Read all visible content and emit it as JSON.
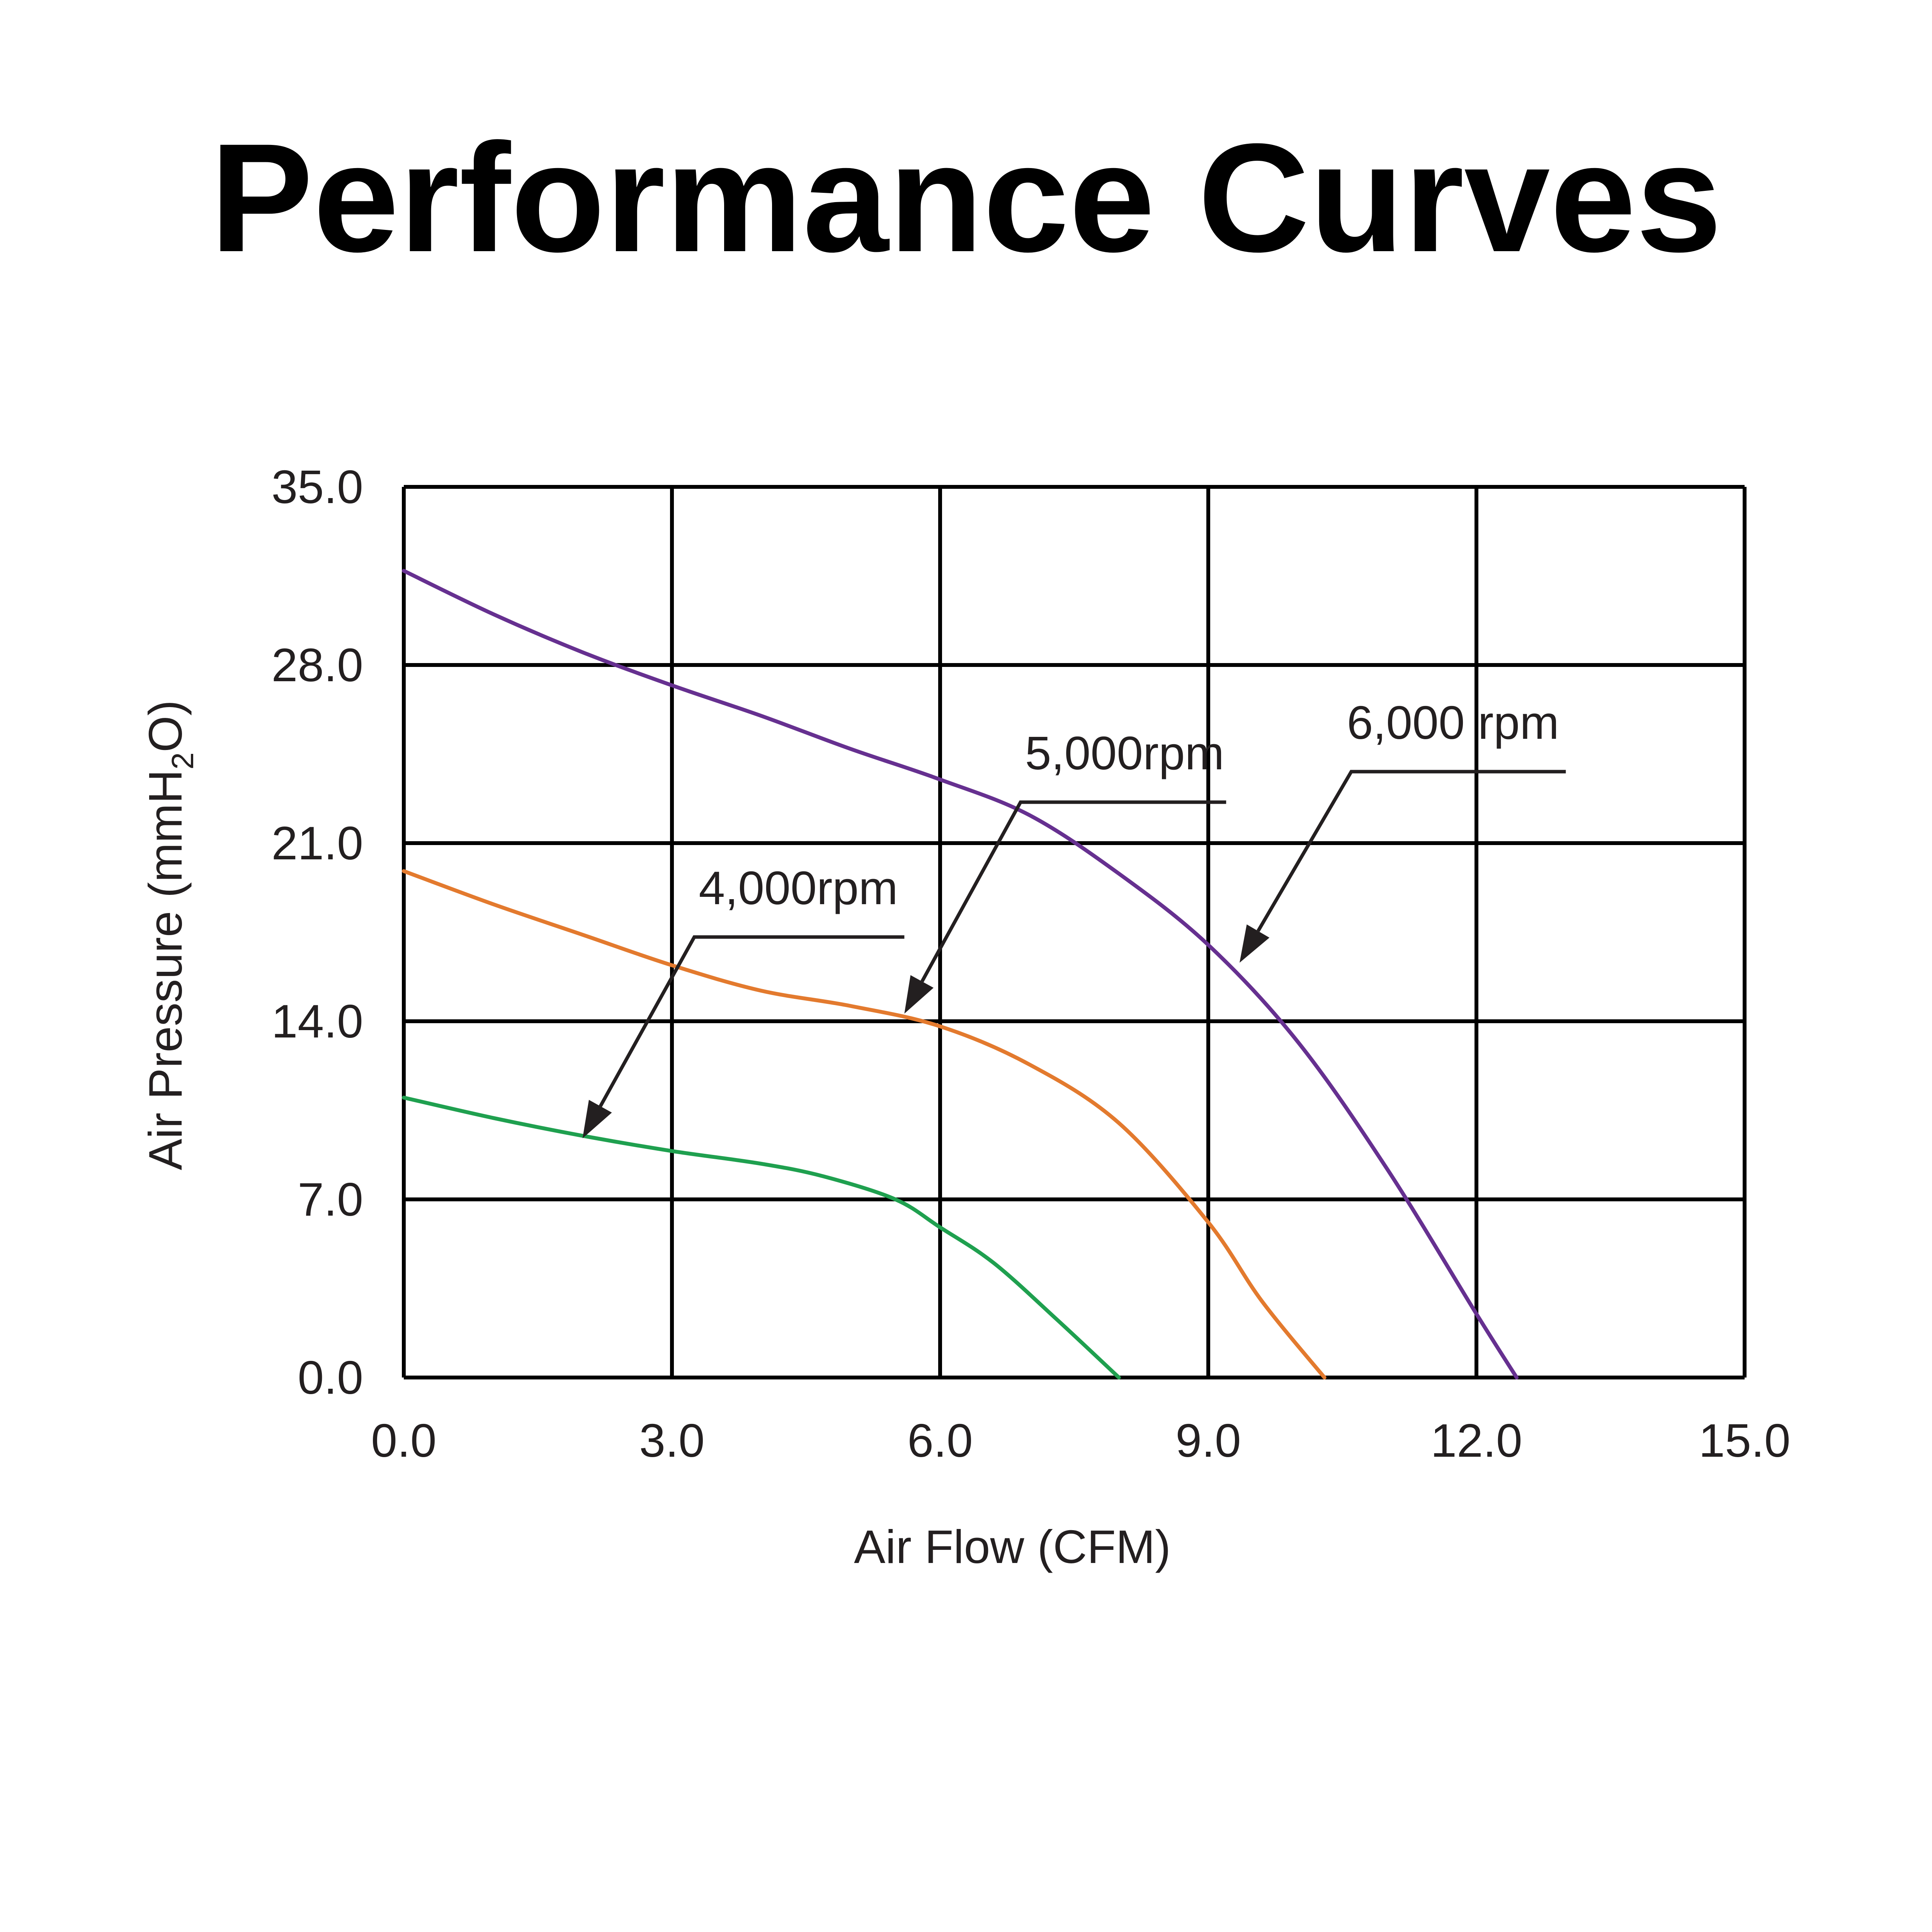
{
  "chart_data": {
    "type": "line",
    "title": "Performance Curves",
    "xlabel": "Air Flow (CFM)",
    "ylabel": {
      "prefix": "Air Pressure (mmH",
      "subscript": "2",
      "suffix": "O)"
    },
    "xlim": [
      0,
      15
    ],
    "ylim": [
      0,
      35
    ],
    "x_ticks": [
      0,
      3,
      6,
      9,
      12,
      15
    ],
    "x_tick_labels": [
      "0.0",
      "3.0",
      "6.0",
      "9.0",
      "12.0",
      "15.0"
    ],
    "y_ticks": [
      0,
      7,
      14,
      21,
      28,
      35
    ],
    "y_tick_labels": [
      "0.0",
      "7.0",
      "14.0",
      "21.0",
      "28.0",
      "35.0"
    ],
    "grid": true,
    "series": [
      {
        "name": "4,000rpm",
        "color": "#1fa04f",
        "points": [
          [
            0,
            11.0
          ],
          [
            1,
            10.2
          ],
          [
            2,
            9.5
          ],
          [
            3,
            8.9
          ],
          [
            4,
            8.4
          ],
          [
            4.7,
            7.9
          ],
          [
            5.5,
            7.0
          ],
          [
            6.0,
            5.9
          ],
          [
            6.6,
            4.5
          ],
          [
            7.3,
            2.3
          ],
          [
            8.0,
            0.0
          ]
        ],
        "annotation": {
          "text": "4,000rpm",
          "label_x": 3.3,
          "label_y": 18.6,
          "target_x": 2.0,
          "target_y": 9.4,
          "bar_end_x": 5.6,
          "bend_x": 3.25
        }
      },
      {
        "name": "5,000rpm",
        "color": "#e37a2e",
        "points": [
          [
            0,
            19.9
          ],
          [
            1,
            18.6
          ],
          [
            2,
            17.4
          ],
          [
            3,
            16.2
          ],
          [
            4,
            15.2
          ],
          [
            5,
            14.6
          ],
          [
            6,
            13.8
          ],
          [
            7,
            12.3
          ],
          [
            8,
            10.0
          ],
          [
            9,
            6.1
          ],
          [
            9.6,
            3.0
          ],
          [
            10.3,
            0.0
          ]
        ],
        "annotation": {
          "text": "5,000rpm",
          "label_x": 6.95,
          "label_y": 23.9,
          "target_x": 5.6,
          "target_y": 14.3,
          "bar_end_x": 9.2,
          "bend_x": 6.9
        }
      },
      {
        "name": "6,000 rpm",
        "color": "#663090",
        "points": [
          [
            0,
            31.7
          ],
          [
            1,
            30.0
          ],
          [
            2,
            28.5
          ],
          [
            3,
            27.2
          ],
          [
            4,
            26.0
          ],
          [
            5,
            24.7
          ],
          [
            6,
            23.5
          ],
          [
            7,
            22.1
          ],
          [
            8,
            19.8
          ],
          [
            9,
            17.0
          ],
          [
            10,
            13.2
          ],
          [
            11,
            8.2
          ],
          [
            12,
            2.5
          ],
          [
            12.45,
            0.0
          ]
        ],
        "annotation": {
          "text": "6,000 rpm",
          "label_x": 10.55,
          "label_y": 25.1,
          "target_x": 9.35,
          "target_y": 16.3,
          "bar_end_x": 13.0,
          "bend_x": 10.6
        }
      }
    ]
  }
}
